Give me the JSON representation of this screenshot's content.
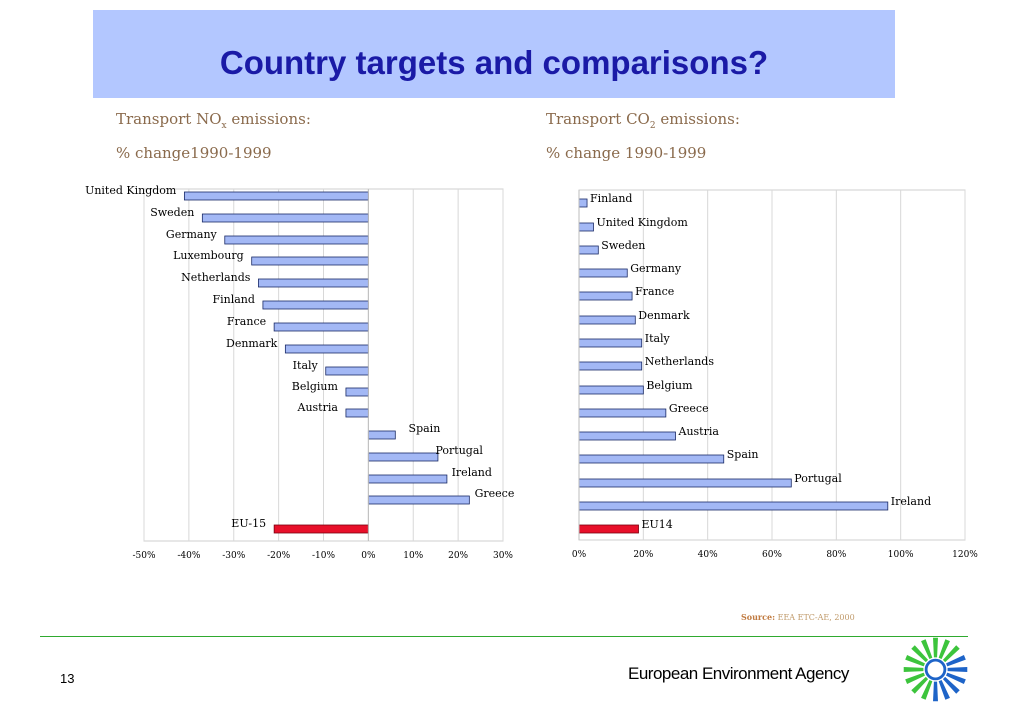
{
  "page": {
    "title": "Country targets and comparisons?",
    "page_number": "13",
    "agency": "European Environment Agency",
    "source_label": "Source:",
    "source_text": "EEA ETC-AE, 2000"
  },
  "colors": {
    "bar": "#a3b8f5",
    "highlight": "#e8102a",
    "title_bg": "#b3c7ff",
    "title_text": "#1a1aa6",
    "subtitle": "#8a6a4c",
    "rule": "#2faa2f",
    "logo_green": "#3cc43c",
    "logo_blue": "#1e64c8"
  },
  "left_subtitle": {
    "prefix": "Transport NO",
    "subscript": "x",
    "suffix": " emissions:",
    "line2": "% change1990-1999"
  },
  "right_subtitle": {
    "prefix": "Transport CO",
    "subscript": "2",
    "suffix": " emissions:",
    "line2": "% change 1990-1999"
  },
  "chart_data": [
    {
      "type": "bar",
      "orientation": "horizontal",
      "title": "Transport NOx emissions: % change1990-1999",
      "xlim": [
        -50,
        30
      ],
      "xticks": [
        "-50%",
        "-40%",
        "-30%",
        "-20%",
        "-10%",
        "0%",
        "10%",
        "20%",
        "30%"
      ],
      "grid": true,
      "categories": [
        "United Kingdom",
        "Sweden",
        "Germany",
        "Luxembourg",
        "Netherlands",
        "Finland",
        "France",
        "Denmark",
        "Italy",
        "Belgium",
        "Austria",
        "Spain",
        "Portugal",
        "Ireland",
        "Greece",
        "EU-15"
      ],
      "values": [
        -41,
        -37,
        -32,
        -26,
        -24.5,
        -23.5,
        -21,
        -18.5,
        -9.5,
        -5,
        -5,
        6,
        15.5,
        17.5,
        22.5,
        -21
      ],
      "highlight": [
        "EU-15"
      ]
    },
    {
      "type": "bar",
      "orientation": "horizontal",
      "title": "Transport CO2 emissions: % change 1990-1999",
      "xlim": [
        0,
        120
      ],
      "xticks": [
        "0%",
        "20%",
        "40%",
        "60%",
        "80%",
        "100%",
        "120%"
      ],
      "grid": true,
      "categories": [
        "Finland",
        "United Kingdom",
        "Sweden",
        "Germany",
        "France",
        "Denmark",
        "Italy",
        "Netherlands",
        "Belgium",
        "Greece",
        "Austria",
        "Spain",
        "Portugal",
        "Ireland",
        "EU14"
      ],
      "values": [
        2.5,
        4.5,
        6,
        15,
        16.5,
        17.5,
        19.5,
        19.5,
        20,
        27,
        30,
        45,
        66,
        96,
        18.5
      ],
      "highlight": [
        "EU14"
      ]
    }
  ]
}
